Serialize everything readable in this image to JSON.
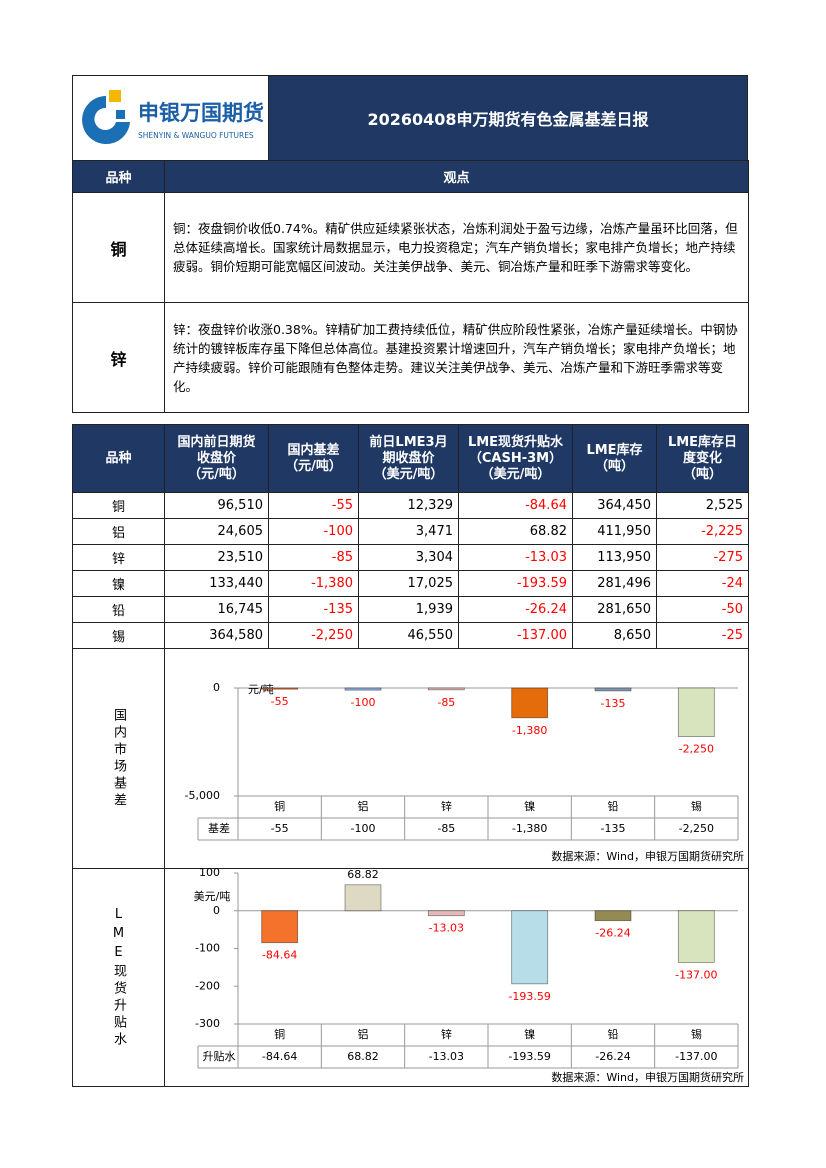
{
  "header": {
    "logo_text": "申银万国期货",
    "logo_subtext": "SHENYIN & WANGUO FUTURES",
    "title": "20260408申万期货有色金属基差日报"
  },
  "views": {
    "columns": [
      "品种",
      "观点"
    ],
    "rows": [
      [
        "铜",
        "铜：夜盘铜价收低0.74%。精矿供应延续紧张状态，冶炼利润处于盈亏边缘，冶炼产量虽环比回落，但总体延续高增长。国家统计局数据显示，电力投资稳定；汽车产销负增长；家电排产负增长；地产持续疲弱。铜价短期可能宽幅区间波动。关注美伊战争、美元、铜冶炼产量和旺季下游需求等变化。"
      ],
      [
        "锌",
        "锌：夜盘锌价收涨0.38%。锌精矿加工费持续低位，精矿供应阶段性紧张，冶炼产量延续增长。中钢协统计的镀锌板库存虽下降但总体高位。基建投资累计增速回升，汽车产销负增长；家电排产负增长；地产持续疲弱。锌价可能跟随有色整体走势。建议关注美伊战争、美元、冶炼产量和下游旺季需求等变化。"
      ]
    ]
  },
  "table": {
    "columns": [
      [
        "品种"
      ],
      [
        "国内前日期货",
        "收盘价",
        "（元/吨）"
      ],
      [
        "国内基差",
        "（元/吨）"
      ],
      [
        "前日LME3月",
        "期收盘价",
        "（美元/吨）"
      ],
      [
        "LME现货升贴水",
        "（CASH-3M）",
        "（美元/吨）"
      ],
      [
        "LME库存",
        "（吨）"
      ],
      [
        "LME库存日",
        "度变化",
        "（吨）"
      ]
    ],
    "rows": [
      [
        "铜",
        "96,510",
        "-55",
        "12,329",
        "-84.64",
        "364,450",
        "2,525"
      ],
      [
        "铝",
        "24,605",
        "-100",
        "3,471",
        "68.82",
        "411,950",
        "-2,225"
      ],
      [
        "锌",
        "23,510",
        "-85",
        "3,304",
        "-13.03",
        "113,950",
        "-275"
      ],
      [
        "镍",
        "133,440",
        "-1,380",
        "17,025",
        "-193.59",
        "281,496",
        "-24"
      ],
      [
        "铅",
        "16,745",
        "-135",
        "1,939",
        "-26.24",
        "281,650",
        "-50"
      ],
      [
        "锡",
        "364,580",
        "-2,250",
        "46,550",
        "-137.00",
        "8,650",
        "-25"
      ]
    ]
  },
  "chart_data": [
    {
      "type": "bar",
      "section_label": "国内市场基差",
      "y_label": "元/吨",
      "categories": [
        "铜",
        "铝",
        "锌",
        "镍",
        "铅",
        "锡"
      ],
      "values": [
        -55,
        -100,
        -85,
        -1380,
        -135,
        -2250
      ],
      "value_labels": [
        "-55",
        "-100",
        "-85",
        "-1,380",
        "-135",
        "-2,250"
      ],
      "colors": [
        "#f26522",
        "#8faadc",
        "#e6b9b8",
        "#e46c0a",
        "#8497b0",
        "#d7e4bd"
      ],
      "ylim": [
        -5000,
        0
      ],
      "yticks": [
        {
          "value": -5000,
          "label": "-5,000"
        },
        0
      ],
      "table_row_label": "基差",
      "source": "数据来源：Wind，申银万国期货研究所"
    },
    {
      "type": "bar",
      "section_label": "LME现货升贴水",
      "y_label": "美元/吨",
      "categories": [
        "铜",
        "铝",
        "锌",
        "镍",
        "铅",
        "锡"
      ],
      "values": [
        -84.64,
        68.82,
        -13.03,
        -193.59,
        -26.24,
        -137
      ],
      "value_labels": [
        "-84.64",
        "68.82",
        "-13.03",
        "-193.59",
        "-26.24",
        "-137.00"
      ],
      "colors": [
        "#f4722b",
        "#ddd9c3",
        "#e6b9b8",
        "#b7dee8",
        "#948a54",
        "#d7e4bd"
      ],
      "ylim": [
        -300,
        100
      ],
      "yticks": [
        -300,
        -200,
        -100,
        0,
        100
      ],
      "table_row_label": "升贴水",
      "source": "数据来源：Wind，申银万国期货研究所"
    }
  ]
}
